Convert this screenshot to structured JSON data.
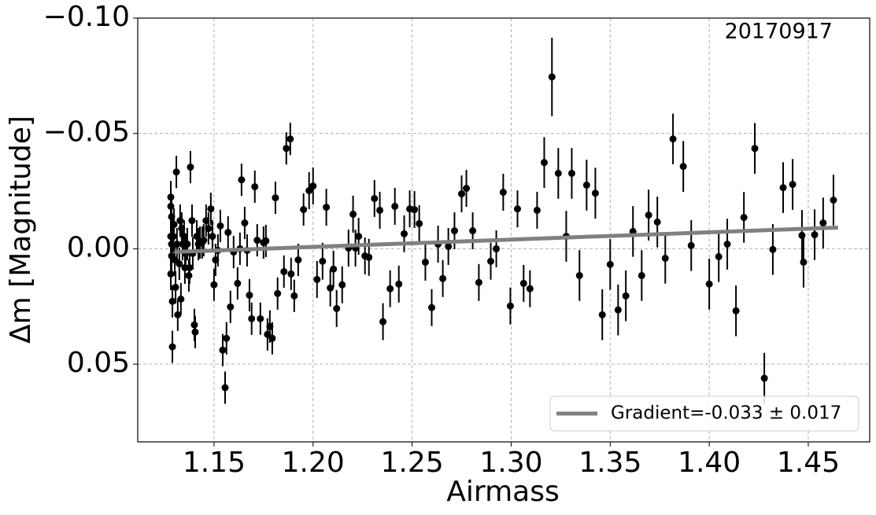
{
  "chart_data": {
    "type": "scatter",
    "xlabel": "Airmass",
    "ylabel": "Δm [Magnitude]",
    "annotation": "20170917",
    "xlim": [
      1.1115,
      1.481
    ],
    "ylim": [
      0.0837,
      -0.1
    ],
    "xticks": [
      1.15,
      {
        "value": 1.2,
        "label": "1.20"
      },
      1.25,
      {
        "value": 1.3,
        "label": "1.30"
      },
      1.35,
      {
        "value": 1.4,
        "label": "1.40"
      },
      1.45
    ],
    "yticks": [
      {
        "value": -0.1,
        "label": "−0.10"
      },
      {
        "value": -0.05,
        "label": "−0.05"
      },
      {
        "value": 0,
        "label": "0.00"
      },
      {
        "value": 0.05,
        "label": "0.05"
      }
    ],
    "grid": true,
    "legend": "lower right",
    "series": [
      {
        "color": "#000000",
        "style": "errorbar",
        "x": [
          1.1282,
          1.1282,
          1.1286,
          1.1282,
          1.1286,
          1.1286,
          1.1282,
          1.129,
          1.129,
          1.1294,
          1.1298,
          1.1302,
          1.1306,
          1.131,
          1.1313,
          1.1317,
          1.1325,
          1.1329,
          1.1333,
          1.1337,
          1.1341,
          1.1349,
          1.1353,
          1.1357,
          1.1365,
          1.1373,
          1.1377,
          1.1381,
          1.1389,
          1.1393,
          1.1401,
          1.1405,
          1.1413,
          1.1421,
          1.1429,
          1.144,
          1.1448,
          1.146,
          1.1472,
          1.1484,
          1.1492,
          1.15,
          1.1508,
          1.152,
          1.1532,
          1.1544,
          1.1556,
          1.1563,
          1.1571,
          1.1583,
          1.1599,
          1.1619,
          1.1631,
          1.1639,
          1.1655,
          1.1667,
          1.1679,
          1.169,
          1.1706,
          1.1718,
          1.1734,
          1.175,
          1.1762,
          1.177,
          1.1782,
          1.1794,
          1.181,
          1.1821,
          1.1853,
          1.1865,
          1.1885,
          1.1889,
          1.1905,
          1.1925,
          1.1952,
          1.198,
          1.2,
          1.202,
          1.2048,
          1.2067,
          1.2087,
          1.2103,
          1.2119,
          1.2147,
          1.2179,
          1.2202,
          1.2214,
          1.223,
          1.2262,
          1.2282,
          1.231,
          1.2337,
          1.2353,
          1.2389,
          1.2413,
          1.2433,
          1.246,
          1.2488,
          1.2512,
          1.2536,
          1.2567,
          1.2599,
          1.2631,
          1.2655,
          1.2683,
          1.2714,
          1.275,
          1.2774,
          1.2806,
          1.2837,
          1.2897,
          1.2925,
          1.296,
          1.2996,
          1.3032,
          1.3063,
          1.3095,
          1.3131,
          1.3167,
          1.3206,
          1.3238,
          1.3278,
          1.3306,
          1.3345,
          1.3381,
          1.3425,
          1.346,
          1.35,
          1.354,
          1.3579,
          1.3615,
          1.3659,
          1.3694,
          1.3738,
          1.3778,
          1.3817,
          1.3869,
          1.3909,
          1.4,
          1.4048,
          1.4091,
          1.4135,
          1.4175,
          1.423,
          1.4278,
          1.4321,
          1.4373,
          1.4421,
          1.4468,
          1.4476,
          1.4532,
          1.4575,
          1.4627
        ],
        "values": [
          -0.0224,
          -0.0184,
          -0.0139,
          -0.0054,
          -0.002,
          0.0031,
          0.0109,
          0.0228,
          0.0425,
          -0.0054,
          -0.0105,
          0.0048,
          0.0167,
          -0.0333,
          -0.002,
          0.0286,
          0.0065,
          -0.0122,
          0.0218,
          -0.0088,
          -0.002,
          -0.0054,
          0.0082,
          0.002,
          -0.002,
          0.0116,
          0.0082,
          -0.0354,
          -0.0122,
          0.002,
          0.033,
          0.0361,
          -0.0054,
          -0.002,
          -0.0027,
          -0.0027,
          -0.0037,
          -0.0122,
          -0.0088,
          -0.0173,
          -0.0054,
          0.0156,
          0.0048,
          0.0007,
          -0.0099,
          0.0439,
          0.0602,
          0.0388,
          -0.0071,
          0.0252,
          0.0014,
          0.015,
          0,
          -0.0299,
          -0.0112,
          0.0007,
          0.0201,
          0.0303,
          -0.0269,
          -0.0037,
          0.0303,
          -0.0027,
          -0.0034,
          0.0371,
          0.0337,
          0.0388,
          -0.0221,
          0.0194,
          0.0099,
          -0.0435,
          -0.0476,
          0.0109,
          0.0204,
          0.0048,
          -0.017,
          -0.0252,
          -0.0272,
          0.0133,
          0.0054,
          -0.018,
          0.017,
          0.0088,
          0.0259,
          0.0156,
          -0.0003,
          -0.015,
          -0.0003,
          -0.0054,
          0.0031,
          0.0037,
          -0.0218,
          -0.0167,
          0.0316,
          0.0173,
          -0.0184,
          0.0153,
          -0.0065,
          -0.0173,
          -0.017,
          -0.0109,
          0.0058,
          0.0255,
          -0.002,
          0.0129,
          -0.001,
          -0.0078,
          -0.0238,
          -0.0262,
          -0.0078,
          0.0146,
          0.0054,
          0,
          -0.0245,
          0.0248,
          -0.0173,
          0.015,
          0.0173,
          -0.0167,
          -0.0374,
          -0.0745,
          -0.0327,
          -0.0054,
          -0.0327,
          0.0116,
          -0.0276,
          -0.0241,
          0.0286,
          0.0068,
          0.0265,
          0.0204,
          -0.0075,
          0.0116,
          -0.0146,
          -0.0116,
          0.0041,
          -0.0476,
          -0.0357,
          -0.0014,
          0.0153,
          0.0034,
          -0.002,
          0.0269,
          -0.0136,
          -0.0435,
          0.0561,
          0.0003,
          -0.0265,
          -0.0279,
          -0.0058,
          0.0058,
          -0.0061,
          -0.0112,
          -0.0211
        ],
        "errors": [
          0.007,
          0.007,
          0.007,
          0.007,
          0.007,
          0.007,
          0.007,
          0.007,
          0.007,
          0.007,
          0.007,
          0.007,
          0.007,
          0.007,
          0.007,
          0.007,
          0.007,
          0.007,
          0.007,
          0.007,
          0.007,
          0.007,
          0.007,
          0.007,
          0.007,
          0.007,
          0.007,
          0.007,
          0.007,
          0.007,
          0.007,
          0.007,
          0.007,
          0.007,
          0.007,
          0.007,
          0.007,
          0.007,
          0.007,
          0.007,
          0.007,
          0.007,
          0.007,
          0.007,
          0.007,
          0.007,
          0.007,
          0.007,
          0.007,
          0.007,
          0.007,
          0.007,
          0.007,
          0.007,
          0.007,
          0.007,
          0.007,
          0.007,
          0.007,
          0.007,
          0.007,
          0.007,
          0.007,
          0.007,
          0.007,
          0.007,
          0.007,
          0.007,
          0.007,
          0.007,
          0.007,
          0.007,
          0.007,
          0.007,
          0.007,
          0.008,
          0.008,
          0.008,
          0.008,
          0.008,
          0.008,
          0.008,
          0.008,
          0.008,
          0.008,
          0.008,
          0.008,
          0.008,
          0.008,
          0.008,
          0.008,
          0.008,
          0.008,
          0.008,
          0.008,
          0.008,
          0.008,
          0.008,
          0.008,
          0.008,
          0.008,
          0.008,
          0.008,
          0.008,
          0.008,
          0.008,
          0.008,
          0.008,
          0.008,
          0.008,
          0.008,
          0.008,
          0.008,
          0.008,
          0.008,
          0.008,
          0.008,
          0.008,
          0.011,
          0.017,
          0.011,
          0.011,
          0.011,
          0.011,
          0.011,
          0.011,
          0.011,
          0.011,
          0.011,
          0.011,
          0.011,
          0.011,
          0.011,
          0.011,
          0.011,
          0.011,
          0.011,
          0.011,
          0.011,
          0.011,
          0.011,
          0.011,
          0.011,
          0.011,
          0.011,
          0.011,
          0.011,
          0.011,
          0.011,
          0.011,
          0.011,
          0.011,
          0.011
        ]
      },
      {
        "name": "Gradient=-0.033 ± 0.017",
        "color": "#808080",
        "style": "line",
        "x": [
          1.13,
          1.465
        ],
        "values": [
          0.0014,
          -0.0092
        ]
      }
    ]
  }
}
